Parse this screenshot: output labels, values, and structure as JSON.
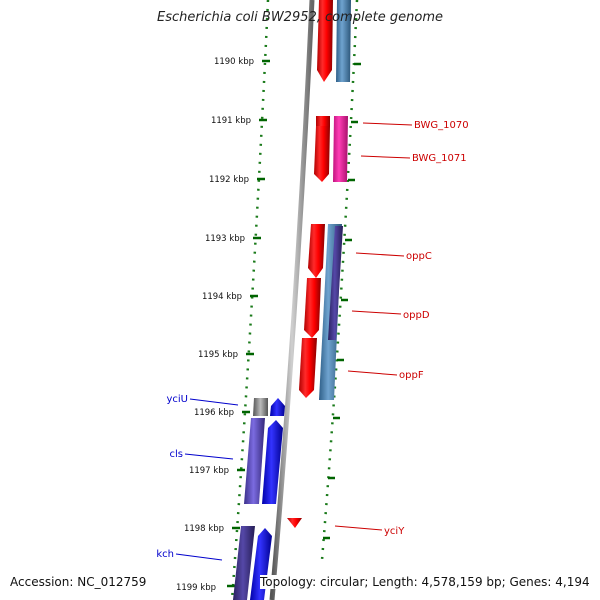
{
  "title": "Escherichia coli BW2952, complete genome",
  "footer": {
    "accession": "Accession: NC_012759",
    "topology": "Topology: circular; Length: 4,578,159 bp; Genes: 4,194"
  },
  "colors": {
    "forward_gene": "#ff0000",
    "forward_cds": "#ff2aa8",
    "forward_cds_alt": "#4682b4",
    "reverse_gene": "#0000ff",
    "reverse_cds": "#6a5acd",
    "tick": "#006400",
    "backbone": "#808080",
    "label_forward": "#cc0000",
    "label_reverse": "#0000cc"
  },
  "ticks": [
    "1190 kbp",
    "1191 kbp",
    "1192 kbp",
    "1193 kbp",
    "1194 kbp",
    "1195 kbp",
    "1196 kbp",
    "1197 kbp",
    "1198 kbp",
    "1199 kbp"
  ],
  "genes": [
    {
      "name": "BWG_1070",
      "strand": "forward"
    },
    {
      "name": "BWG_1071",
      "strand": "forward"
    },
    {
      "name": "oppC",
      "strand": "forward"
    },
    {
      "name": "oppD",
      "strand": "forward"
    },
    {
      "name": "oppF",
      "strand": "forward"
    },
    {
      "name": "yciU",
      "strand": "reverse"
    },
    {
      "name": "cls",
      "strand": "reverse"
    },
    {
      "name": "yciY",
      "strand": "forward"
    },
    {
      "name": "kch",
      "strand": "reverse"
    }
  ]
}
